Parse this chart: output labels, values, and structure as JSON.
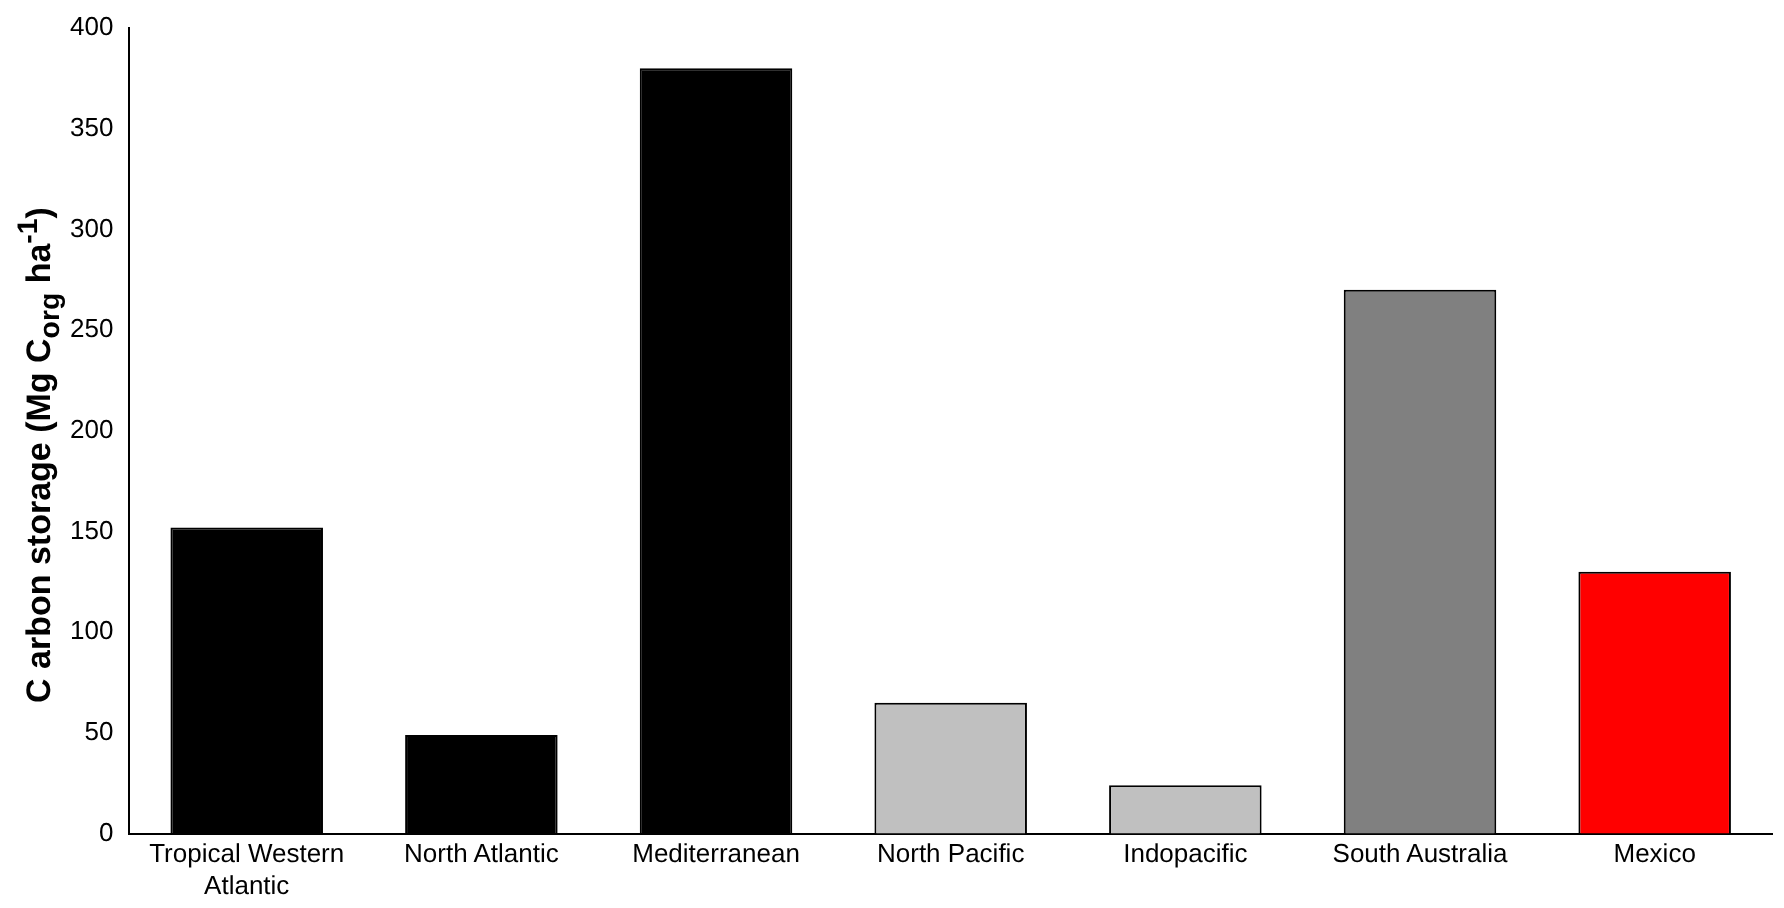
{
  "chart_data": {
    "type": "bar",
    "ylabel": "C arbon storage (Mg C$_{org}$  ha$^{-1}$)",
    "categories": [
      "Tropical Western Atlantic",
      "North Atlantic",
      "Mediterranean",
      "North Pacific",
      "Indopacific",
      "South Australia",
      "Mexico"
    ],
    "values": [
      152,
      49,
      380,
      65,
      24,
      270,
      130
    ],
    "colors": [
      "#000000",
      "#000000",
      "#000000",
      "#c0c0c0",
      "#c0c0c0",
      "#808080",
      "#ff0000"
    ],
    "ylim": [
      0,
      400
    ],
    "yticks": [
      0,
      50,
      100,
      150,
      200,
      250,
      300,
      350,
      400
    ],
    "grid": false,
    "legend": false
  }
}
